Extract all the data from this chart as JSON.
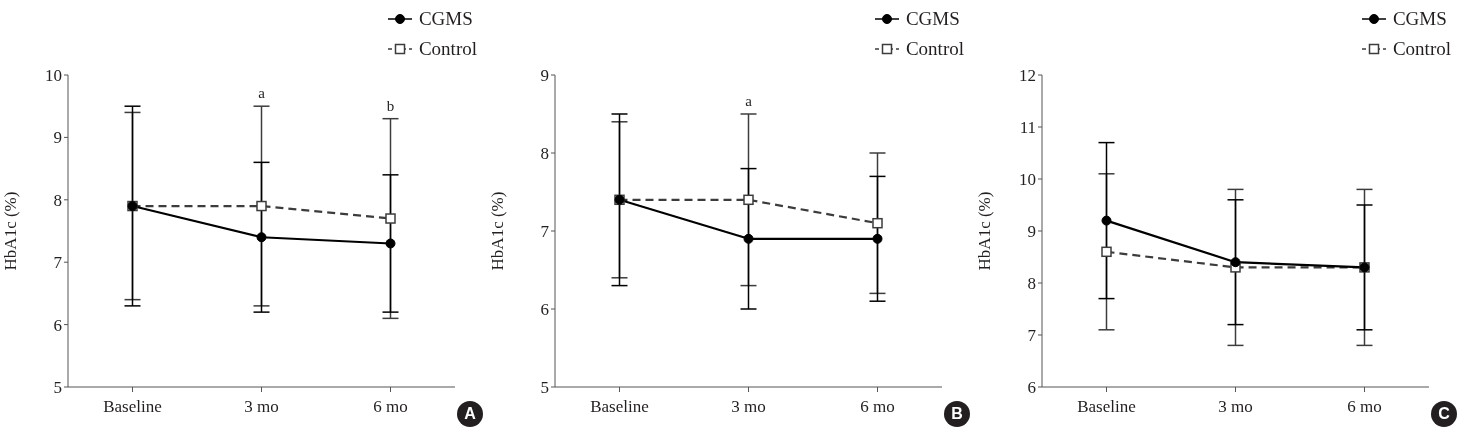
{
  "chart_data": [
    {
      "type": "line",
      "ylabel": "HbA1c (%)",
      "categories": [
        "Baseline",
        "3 mo",
        "6 mo"
      ],
      "series": [
        {
          "name": "CGMS",
          "color": "#000000",
          "values": [
            7.9,
            7.4,
            7.3
          ],
          "errors": [
            1.6,
            1.2,
            1.1
          ],
          "marker": "circle",
          "line_style": "solid"
        },
        {
          "name": "Control",
          "color": "#3c3c3c",
          "values": [
            7.9,
            7.9,
            7.7
          ],
          "errors": [
            1.5,
            1.6,
            1.6
          ],
          "marker": "square",
          "line_style": "dashed"
        }
      ],
      "ylim": [
        5,
        10
      ],
      "yticks": [
        5,
        6,
        7,
        8,
        9,
        10
      ],
      "legend": "top right",
      "grid": false,
      "annotations": [
        "A",
        "a",
        "b"
      ]
    },
    {
      "type": "line",
      "ylabel": "HbA1c (%)",
      "categories": [
        "Baseline",
        "3 mo",
        "6 mo"
      ],
      "series": [
        {
          "name": "CGMS",
          "color": "#000000",
          "values": [
            7.4,
            6.9,
            6.9
          ],
          "errors": [
            1.1,
            0.9,
            0.8
          ],
          "marker": "circle",
          "line_style": "solid"
        },
        {
          "name": "Control",
          "color": "#3c3c3c",
          "values": [
            7.4,
            7.4,
            7.1
          ],
          "errors": [
            1.0,
            1.1,
            0.9
          ],
          "marker": "square",
          "line_style": "dashed"
        }
      ],
      "ylim": [
        5,
        9
      ],
      "yticks": [
        5,
        6,
        7,
        8,
        9
      ],
      "legend": "top right",
      "grid": false,
      "annotations": [
        "B",
        "a"
      ]
    },
    {
      "type": "line",
      "ylabel": "HbA1c (%)",
      "categories": [
        "Baseline",
        "3 mo",
        "6 mo"
      ],
      "series": [
        {
          "name": "CGMS",
          "color": "#000000",
          "values": [
            9.2,
            8.4,
            8.3
          ],
          "errors": [
            1.5,
            1.2,
            1.2
          ],
          "marker": "circle",
          "line_style": "solid"
        },
        {
          "name": "Control",
          "color": "#3c3c3c",
          "values": [
            8.6,
            8.3,
            8.3
          ],
          "errors": [
            1.5,
            1.5,
            1.5
          ],
          "marker": "square",
          "line_style": "dashed"
        }
      ],
      "ylim": [
        6,
        12
      ],
      "yticks": [
        6,
        7,
        8,
        9,
        10,
        11,
        12
      ],
      "legend": "top right",
      "grid": false,
      "annotations": [
        "C"
      ]
    }
  ]
}
